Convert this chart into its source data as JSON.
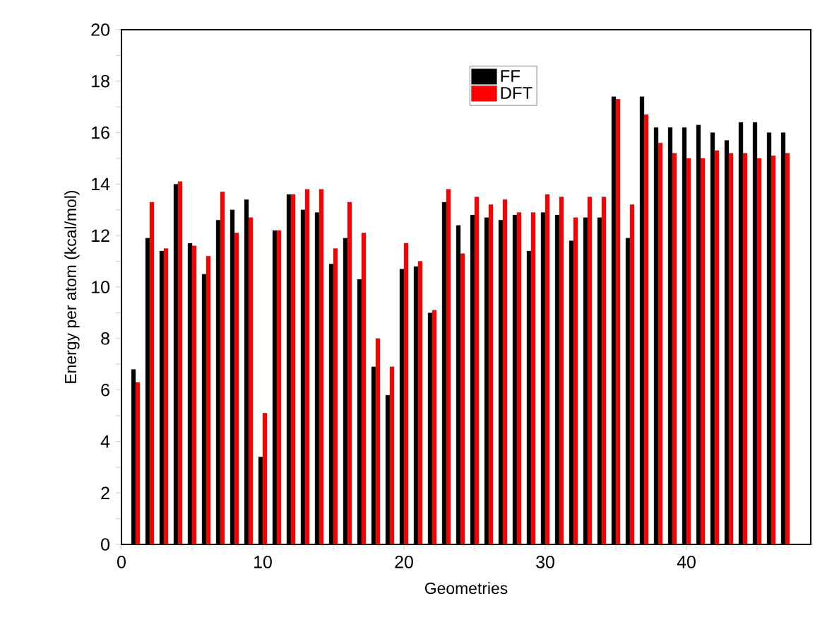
{
  "chart_data": {
    "type": "bar",
    "xlabel": "Geometries",
    "ylabel": "Energy per atom (kcal/mol)",
    "x": [
      1,
      2,
      3,
      4,
      5,
      6,
      7,
      8,
      9,
      10,
      11,
      12,
      13,
      14,
      15,
      16,
      17,
      18,
      19,
      20,
      21,
      22,
      23,
      24,
      25,
      26,
      27,
      28,
      29,
      30,
      31,
      32,
      33,
      34,
      35,
      36,
      37,
      38,
      39,
      40,
      41,
      42,
      43,
      44,
      45,
      46,
      47
    ],
    "series": [
      {
        "name": "FF",
        "color": "#000000",
        "values": [
          6.8,
          11.9,
          11.4,
          14.0,
          11.7,
          10.5,
          12.6,
          13.0,
          13.4,
          3.4,
          12.2,
          13.6,
          13.0,
          12.9,
          10.9,
          11.9,
          10.3,
          6.9,
          5.8,
          10.7,
          10.8,
          9.0,
          13.3,
          12.4,
          12.8,
          12.7,
          12.6,
          12.8,
          11.4,
          12.9,
          12.8,
          11.8,
          12.7,
          12.7,
          17.4,
          11.9,
          17.4,
          16.2,
          16.2,
          16.2,
          16.3,
          16.0,
          15.7,
          16.4,
          16.4,
          16.0,
          16.0
        ]
      },
      {
        "name": "DFT",
        "color": "#ff0000",
        "values": [
          6.3,
          13.3,
          11.5,
          14.1,
          11.6,
          11.2,
          13.7,
          12.1,
          12.7,
          5.1,
          12.2,
          13.6,
          13.8,
          13.8,
          11.5,
          13.3,
          12.1,
          8.0,
          6.9,
          11.7,
          11.0,
          9.1,
          13.8,
          11.3,
          13.5,
          13.2,
          13.4,
          12.9,
          12.9,
          13.6,
          13.5,
          12.7,
          13.5,
          13.5,
          17.3,
          13.2,
          16.7,
          15.6,
          15.2,
          15.0,
          15.0,
          15.3,
          15.2,
          15.2,
          15.0,
          15.1,
          15.2
        ]
      }
    ],
    "xlim": [
      0,
      48.8
    ],
    "xticks": [
      0,
      {
        "value": 5,
        "label": null
      },
      10,
      {
        "value": 15,
        "label": null
      },
      20,
      {
        "value": 25,
        "label": null
      },
      30,
      {
        "value": 35,
        "label": null
      },
      40,
      {
        "value": 45,
        "label": null
      }
    ],
    "ylim": [
      0,
      20
    ],
    "yticks": [
      0,
      {
        "value": 1,
        "label": null
      },
      2,
      {
        "value": 3,
        "label": null
      },
      4,
      {
        "value": 5,
        "label": null
      },
      6,
      {
        "value": 7,
        "label": null
      },
      8,
      {
        "value": 9,
        "label": null
      },
      10,
      {
        "value": 11,
        "label": null
      },
      12,
      {
        "value": 13,
        "label": null
      },
      14,
      {
        "value": 15,
        "label": null
      },
      16,
      {
        "value": 17,
        "label": null
      },
      18,
      {
        "value": 19,
        "label": null
      },
      20
    ],
    "legend": "top right",
    "grid": false
  }
}
